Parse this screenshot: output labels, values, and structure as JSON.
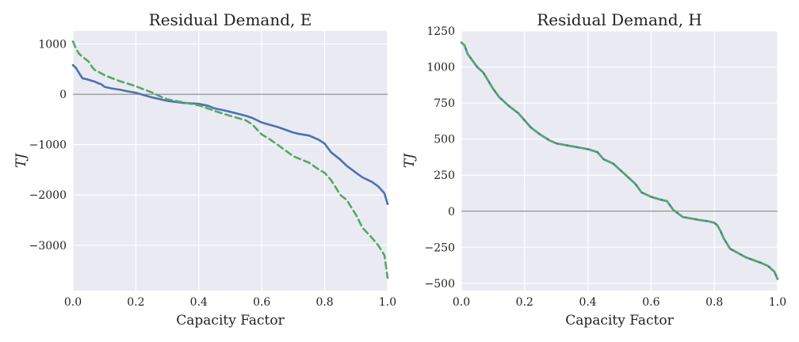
{
  "chart_data": [
    {
      "type": "line",
      "title": "Residual Demand, E",
      "xlabel": "Capacity Factor",
      "ylabel": "TJ",
      "xlim": [
        0,
        1
      ],
      "ylim": [
        -3900,
        1260
      ],
      "xticks": [
        0,
        0.2,
        0.4,
        0.6,
        0.8,
        1.0
      ],
      "xtick_labels": [
        "0.0",
        "0.2",
        "0.4",
        "0.6",
        "0.8",
        "1.0"
      ],
      "yticks": [
        1000,
        0,
        -1000,
        -2000,
        -3000
      ],
      "ytick_labels": [
        "1000",
        "0",
        "−1000",
        "−2000",
        "−3000"
      ],
      "hline": 0,
      "grid": true,
      "series": [
        {
          "color": "#4c72b0",
          "dash": "solid",
          "x": [
            0,
            0.01,
            0.02,
            0.03,
            0.05,
            0.07,
            0.08,
            0.09,
            0.1,
            0.12,
            0.15,
            0.18,
            0.2,
            0.25,
            0.3,
            0.35,
            0.4,
            0.43,
            0.45,
            0.48,
            0.5,
            0.52,
            0.55,
            0.57,
            0.6,
            0.65,
            0.7,
            0.72,
            0.75,
            0.78,
            0.8,
            0.82,
            0.85,
            0.87,
            0.9,
            0.92,
            0.95,
            0.97,
            0.99,
            1.0
          ],
          "y": [
            580,
            520,
            420,
            320,
            290,
            250,
            220,
            200,
            150,
            120,
            90,
            50,
            30,
            -60,
            -130,
            -170,
            -190,
            -230,
            -280,
            -320,
            -350,
            -380,
            -430,
            -470,
            -560,
            -650,
            -760,
            -790,
            -820,
            -900,
            -980,
            -1150,
            -1300,
            -1420,
            -1560,
            -1650,
            -1740,
            -1830,
            -1970,
            -2180
          ]
        },
        {
          "color": "#55a868",
          "dash": "dashed",
          "x": [
            0,
            0.01,
            0.02,
            0.03,
            0.05,
            0.06,
            0.07,
            0.08,
            0.1,
            0.12,
            0.15,
            0.18,
            0.2,
            0.22,
            0.25,
            0.28,
            0.3,
            0.35,
            0.4,
            0.42,
            0.45,
            0.5,
            0.55,
            0.57,
            0.6,
            0.62,
            0.65,
            0.7,
            0.75,
            0.78,
            0.8,
            0.82,
            0.84,
            0.85,
            0.87,
            0.9,
            0.92,
            0.95,
            0.97,
            0.99,
            1.0
          ],
          "y": [
            1050,
            900,
            800,
            750,
            650,
            550,
            480,
            450,
            380,
            330,
            260,
            200,
            160,
            110,
            40,
            -50,
            -100,
            -160,
            -220,
            -260,
            -330,
            -430,
            -520,
            -600,
            -800,
            -870,
            -1000,
            -1230,
            -1360,
            -1490,
            -1560,
            -1700,
            -1900,
            -2000,
            -2100,
            -2400,
            -2650,
            -2850,
            -3000,
            -3200,
            -3650
          ]
        }
      ]
    },
    {
      "type": "line",
      "title": "Residual Demand, H",
      "xlabel": "Capacity Factor",
      "ylabel": "TJ",
      "xlim": [
        0,
        1
      ],
      "ylim": [
        -550,
        1250
      ],
      "xticks": [
        0,
        0.2,
        0.4,
        0.6,
        0.8,
        1.0
      ],
      "xtick_labels": [
        "0.0",
        "0.2",
        "0.4",
        "0.6",
        "0.8",
        "1.0"
      ],
      "yticks": [
        1250,
        1000,
        750,
        500,
        250,
        0,
        -250,
        -500
      ],
      "ytick_labels": [
        "1250",
        "1000",
        "750",
        "500",
        "250",
        "0",
        "−250",
        "−500"
      ],
      "hline": 0,
      "grid": true,
      "series": [
        {
          "color": "#4c72b0",
          "dash": "solid",
          "x": [
            0,
            0.01,
            0.02,
            0.03,
            0.05,
            0.07,
            0.1,
            0.12,
            0.15,
            0.18,
            0.2,
            0.22,
            0.25,
            0.28,
            0.3,
            0.35,
            0.4,
            0.43,
            0.45,
            0.48,
            0.5,
            0.52,
            0.55,
            0.57,
            0.6,
            0.63,
            0.65,
            0.67,
            0.7,
            0.75,
            0.78,
            0.8,
            0.81,
            0.82,
            0.83,
            0.85,
            0.9,
            0.95,
            0.97,
            0.99,
            1.0
          ],
          "y": [
            1170,
            1150,
            1090,
            1060,
            1000,
            960,
            850,
            790,
            730,
            680,
            630,
            580,
            530,
            490,
            470,
            450,
            430,
            410,
            360,
            330,
            290,
            250,
            190,
            130,
            100,
            80,
            70,
            10,
            -40,
            -60,
            -70,
            -80,
            -100,
            -140,
            -190,
            -260,
            -320,
            -360,
            -380,
            -420,
            -470
          ]
        },
        {
          "color": "#55a868",
          "dash": "dashed",
          "x": [
            0,
            0.01,
            0.02,
            0.03,
            0.05,
            0.07,
            0.1,
            0.12,
            0.15,
            0.18,
            0.2,
            0.22,
            0.25,
            0.28,
            0.3,
            0.35,
            0.4,
            0.43,
            0.45,
            0.48,
            0.5,
            0.52,
            0.55,
            0.57,
            0.6,
            0.63,
            0.65,
            0.67,
            0.7,
            0.75,
            0.78,
            0.8,
            0.81,
            0.82,
            0.83,
            0.85,
            0.9,
            0.95,
            0.97,
            0.99,
            1.0
          ],
          "y": [
            1170,
            1150,
            1090,
            1060,
            1000,
            960,
            850,
            790,
            730,
            680,
            630,
            580,
            530,
            490,
            470,
            450,
            430,
            410,
            360,
            330,
            290,
            250,
            190,
            130,
            100,
            80,
            70,
            10,
            -40,
            -60,
            -70,
            -80,
            -100,
            -140,
            -190,
            -260,
            -320,
            -360,
            -380,
            -420,
            -470
          ]
        }
      ]
    }
  ]
}
